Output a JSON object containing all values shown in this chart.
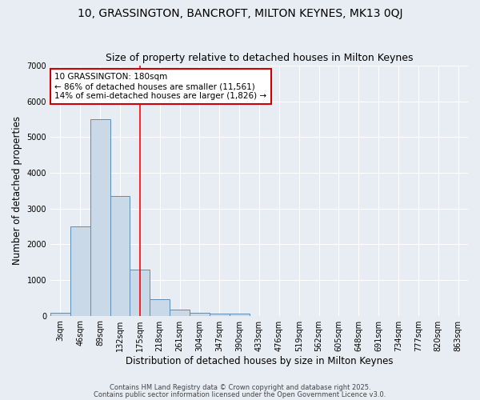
{
  "title1": "10, GRASSINGTON, BANCROFT, MILTON KEYNES, MK13 0QJ",
  "title2": "Size of property relative to detached houses in Milton Keynes",
  "xlabel": "Distribution of detached houses by size in Milton Keynes",
  "ylabel": "Number of detached properties",
  "categories": [
    "3sqm",
    "46sqm",
    "89sqm",
    "132sqm",
    "175sqm",
    "218sqm",
    "261sqm",
    "304sqm",
    "347sqm",
    "390sqm",
    "433sqm",
    "476sqm",
    "519sqm",
    "562sqm",
    "605sqm",
    "648sqm",
    "691sqm",
    "734sqm",
    "777sqm",
    "820sqm",
    "863sqm"
  ],
  "values": [
    90,
    2500,
    5500,
    3350,
    1300,
    450,
    180,
    70,
    60,
    60,
    0,
    0,
    0,
    0,
    0,
    0,
    0,
    0,
    0,
    0,
    0
  ],
  "bar_color": "#c9d9e8",
  "bar_edge_color": "#5b8db8",
  "red_line_index": 4,
  "annotation_text": "10 GRASSINGTON: 180sqm\n← 86% of detached houses are smaller (11,561)\n14% of semi-detached houses are larger (1,826) →",
  "annotation_box_color": "#ffffff",
  "annotation_box_edge_color": "#cc0000",
  "ylim": [
    0,
    7000
  ],
  "bg_color": "#e8edf3",
  "grid_color": "#ffffff",
  "footer1": "Contains HM Land Registry data © Crown copyright and database right 2025.",
  "footer2": "Contains public sector information licensed under the Open Government Licence v3.0.",
  "title_fontsize": 10,
  "subtitle_fontsize": 9,
  "axis_fontsize": 8.5,
  "tick_fontsize": 7,
  "annot_fontsize": 7.5
}
